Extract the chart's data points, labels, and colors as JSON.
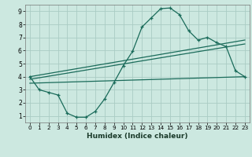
{
  "xlabel": "Humidex (Indice chaleur)",
  "xlim": [
    -0.5,
    23.5
  ],
  "ylim": [
    0.5,
    9.5
  ],
  "xticks": [
    0,
    1,
    2,
    3,
    4,
    5,
    6,
    7,
    8,
    9,
    10,
    11,
    12,
    13,
    14,
    15,
    16,
    17,
    18,
    19,
    20,
    21,
    22,
    23
  ],
  "yticks": [
    1,
    2,
    3,
    4,
    5,
    6,
    7,
    8,
    9
  ],
  "bg_color": "#cce8e0",
  "line_color": "#1a6b5a",
  "grid_color": "#aaccc4",
  "curve_x": [
    0,
    1,
    2,
    3,
    4,
    5,
    6,
    7,
    8,
    9,
    10,
    11,
    12,
    13,
    14,
    15,
    16,
    17,
    18,
    19,
    20,
    21,
    22,
    23
  ],
  "curve_y": [
    4.0,
    3.0,
    2.8,
    2.6,
    1.2,
    0.9,
    0.9,
    1.35,
    2.3,
    3.55,
    4.85,
    5.95,
    7.8,
    8.5,
    9.2,
    9.25,
    8.75,
    7.5,
    6.8,
    7.0,
    6.6,
    6.3,
    4.45,
    4.0
  ],
  "line1_x": [
    0,
    23
  ],
  "line1_y": [
    4.0,
    6.8
  ],
  "line2_x": [
    0,
    23
  ],
  "line2_y": [
    3.8,
    6.5
  ],
  "line3_x": [
    0,
    23
  ],
  "line3_y": [
    3.5,
    4.0
  ]
}
